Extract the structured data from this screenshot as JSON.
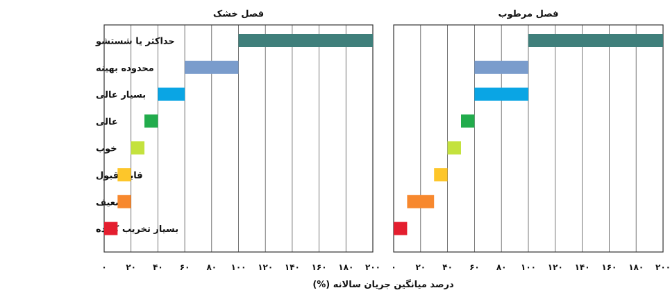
{
  "chart_data": {
    "type": "bar",
    "subtype": "range",
    "xlabel": "درصد میانگین جریان سالانه (%)",
    "xlim": [
      0,
      200
    ],
    "xticks": [
      "۰",
      "۲۰",
      "۴۰",
      "۶۰",
      "۸۰",
      "۱۰۰",
      "۱۲۰",
      "۱۴۰",
      "۱۶۰",
      "۱۸۰",
      "۲۰۰"
    ],
    "grid": true,
    "categories": [
      "حداکثر یا شستشو",
      "محدوده بهینه",
      "بسیار عالی",
      "عالی",
      "خوب",
      "قابل قبول",
      "ضعیف",
      "بسیار تخریب کننده"
    ],
    "colors": [
      "#3f7f7b",
      "#7a9ccc",
      "#0aa5e4",
      "#22ac4c",
      "#c4e23e",
      "#fdc62a",
      "#f7882e",
      "#e41e2f"
    ],
    "panels": [
      {
        "title": "فصل خشک",
        "ranges": [
          [
            100,
            200
          ],
          [
            60,
            100
          ],
          [
            40,
            60
          ],
          [
            30,
            40
          ],
          [
            20,
            30
          ],
          [
            10,
            20
          ],
          [
            10,
            20
          ],
          [
            0,
            10
          ]
        ]
      },
      {
        "title": "فصل مرطوب",
        "ranges": [
          [
            100,
            200
          ],
          [
            60,
            100
          ],
          [
            60,
            100
          ],
          [
            50,
            60
          ],
          [
            40,
            50
          ],
          [
            30,
            40
          ],
          [
            10,
            30
          ],
          [
            0,
            10
          ]
        ]
      }
    ]
  }
}
